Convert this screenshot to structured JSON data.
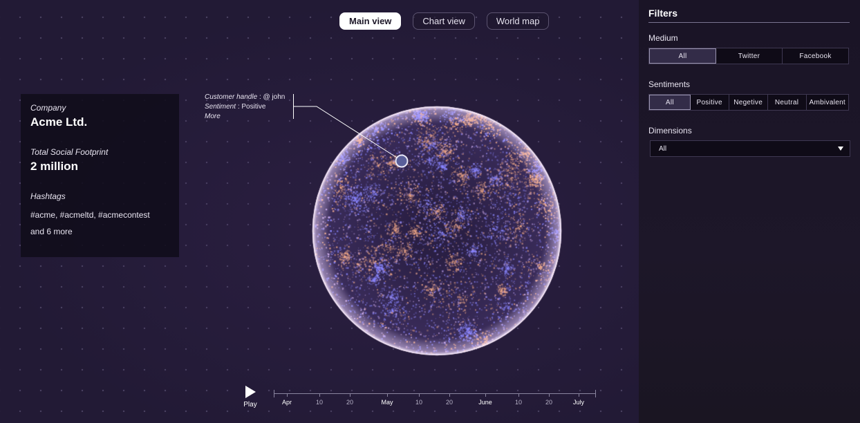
{
  "view_tabs": [
    {
      "label": "Main view",
      "active": true
    },
    {
      "label": "Chart view",
      "active": false
    },
    {
      "label": "World map",
      "active": false
    }
  ],
  "info": {
    "company_label": "Company",
    "company_value": "Acme Ltd.",
    "footprint_label": "Total Social Footprint",
    "footprint_value": "2 million",
    "hashtags_label": "Hashtags",
    "hashtags_value": "#acme, #acmeltd, #acmecontest",
    "hashtags_more": "and 6 more"
  },
  "callout": {
    "handle_label": "Customer handle",
    "handle_value": ": @ john",
    "sentiment_label": "Sentiment",
    "sentiment_value": ": Positive",
    "more": "More"
  },
  "player": {
    "play_label": "Play",
    "timeline": [
      "Apr",
      "10",
      "20",
      "May",
      "10",
      "20",
      "June",
      "10",
      "20",
      "July"
    ]
  },
  "filters": {
    "title": "Filters",
    "medium_label": "Medium",
    "medium_options": [
      "All",
      "Twitter",
      "Facebook"
    ],
    "medium_selected": "All",
    "sentiments_label": "Sentiments",
    "sentiment_options": [
      "All",
      "Positive",
      "Negetive",
      "Neutral",
      "Ambivalent"
    ],
    "sentiment_selected": "All",
    "dimensions_label": "Dimensions",
    "dimensions_value": "All"
  },
  "colors": {
    "background": "#221a35",
    "sidebar": "#1a1426",
    "particle_blue": "#8a86ff",
    "particle_orange": "#f0a888",
    "active_tab": "#ffffff"
  }
}
